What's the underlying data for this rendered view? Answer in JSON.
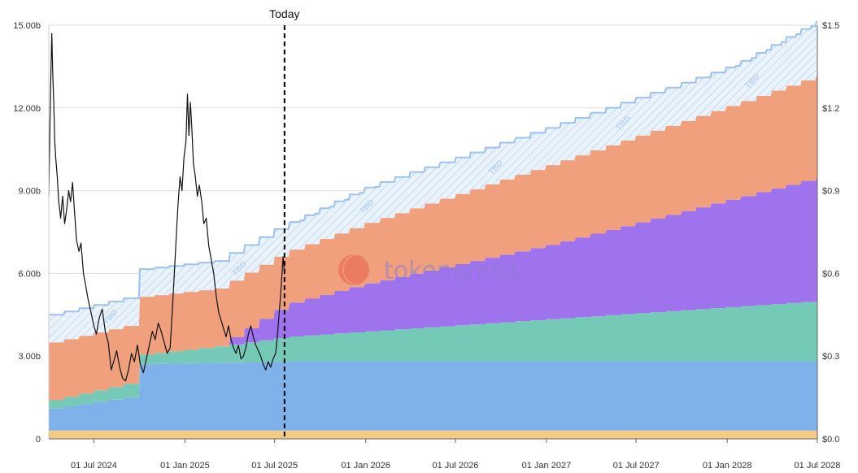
{
  "chart_data": {
    "type": "area",
    "stacked": true,
    "x_axis": {
      "ticks": [
        "01 Jul 2024",
        "01 Jan 2025",
        "01 Jul 2025",
        "01 Jan 2026",
        "01 Jul 2026",
        "01 Jan 2027",
        "01 Jul 2027",
        "01 Jan 2028",
        "01 Jul 2028"
      ],
      "range": [
        "2024-04-01",
        "2028-07-01"
      ]
    },
    "y_axis_left": {
      "ticks": [
        "0",
        "3.00b",
        "6.00b",
        "9.00b",
        "12.00b",
        "15.00b"
      ],
      "range": [
        0,
        15
      ]
    },
    "y_axis_right": {
      "ticks": [
        "$0.0",
        "$0.3",
        "$0.6",
        "$0.9",
        "$1.2",
        "$1.5"
      ],
      "range": [
        0,
        1.5
      ]
    },
    "grid": true,
    "today_marker": {
      "label": "Today",
      "date": "2025-07-21"
    },
    "watermark": "tokenomist",
    "tbd_label": "TBD",
    "series": [
      {
        "color": "#f2cb85",
        "points": [
          [
            "2024-04-01",
            0.3
          ],
          [
            "2028-07-01",
            0.3
          ]
        ]
      },
      {
        "color": "#7fb2ea",
        "points": [
          [
            "2024-04-01",
            0.8
          ],
          [
            "2024-09-01",
            1.2
          ],
          [
            "2024-09-02",
            2.4
          ],
          [
            "2025-03-01",
            2.45
          ],
          [
            "2025-07-21",
            2.5
          ],
          [
            "2028-07-01",
            2.5
          ]
        ]
      },
      {
        "color": "#74c9b7",
        "points": [
          [
            "2024-04-01",
            0.3
          ],
          [
            "2024-09-01",
            0.5
          ],
          [
            "2024-09-02",
            0.3
          ],
          [
            "2025-01-01",
            0.5
          ],
          [
            "2025-03-01",
            0.6
          ],
          [
            "2025-07-21",
            0.9
          ],
          [
            "2028-07-01",
            2.2
          ]
        ]
      },
      {
        "color": "#9f72ee",
        "points": [
          [
            "2025-03-01",
            0.0
          ],
          [
            "2025-07-21",
            1.2
          ],
          [
            "2026-01-01",
            1.75
          ],
          [
            "2027-01-01",
            2.7
          ],
          [
            "2028-01-01",
            3.9
          ],
          [
            "2028-07-01",
            4.5
          ]
        ]
      },
      {
        "color": "#f0a07d",
        "points": [
          [
            "2025-03-01",
            2.1
          ],
          [
            "2025-07-21",
            1.9
          ],
          [
            "2026-01-01",
            2.2
          ],
          [
            "2027-01-01",
            2.9
          ],
          [
            "2028-01-01",
            3.4
          ],
          [
            "2028-07-01",
            3.7
          ]
        ]
      },
      {
        "color": "#cfe3fa",
        "tbd": true,
        "points": [
          [
            "2025-07-21",
            1.0
          ],
          [
            "2026-01-01",
            1.3
          ],
          [
            "2027-01-01",
            1.35
          ],
          [
            "2028-01-01",
            1.4
          ],
          [
            "2028-07-01",
            2.0
          ]
        ]
      }
    ],
    "price": {
      "color": "#111111",
      "axis": "right",
      "points": [
        [
          "2024-04-01",
          0.88
        ],
        [
          "2024-04-03",
          1.1
        ],
        [
          "2024-04-05",
          1.3
        ],
        [
          "2024-04-07",
          1.47
        ],
        [
          "2024-04-09",
          1.32
        ],
        [
          "2024-04-11",
          1.22
        ],
        [
          "2024-04-13",
          1.08
        ],
        [
          "2024-04-15",
          1.02
        ],
        [
          "2024-04-18",
          0.95
        ],
        [
          "2024-04-21",
          0.86
        ],
        [
          "2024-04-25",
          0.8
        ],
        [
          "2024-04-29",
          0.88
        ],
        [
          "2024-05-03",
          0.78
        ],
        [
          "2024-05-07",
          0.83
        ],
        [
          "2024-05-11",
          0.9
        ],
        [
          "2024-05-15",
          0.86
        ],
        [
          "2024-05-19",
          0.93
        ],
        [
          "2024-05-23",
          0.82
        ],
        [
          "2024-05-27",
          0.72
        ],
        [
          "2024-06-01",
          0.68
        ],
        [
          "2024-06-05",
          0.71
        ],
        [
          "2024-06-10",
          0.6
        ],
        [
          "2024-06-15",
          0.55
        ],
        [
          "2024-06-20",
          0.5
        ],
        [
          "2024-06-25",
          0.46
        ],
        [
          "2024-07-01",
          0.41
        ],
        [
          "2024-07-06",
          0.38
        ],
        [
          "2024-07-12",
          0.44
        ],
        [
          "2024-07-18",
          0.47
        ],
        [
          "2024-07-24",
          0.39
        ],
        [
          "2024-07-30",
          0.35
        ],
        [
          "2024-08-05",
          0.25
        ],
        [
          "2024-08-10",
          0.28
        ],
        [
          "2024-08-16",
          0.32
        ],
        [
          "2024-08-22",
          0.26
        ],
        [
          "2024-08-28",
          0.22
        ],
        [
          "2024-09-03",
          0.21
        ],
        [
          "2024-09-09",
          0.25
        ],
        [
          "2024-09-15",
          0.31
        ],
        [
          "2024-09-21",
          0.28
        ],
        [
          "2024-09-27",
          0.34
        ],
        [
          "2024-10-03",
          0.27
        ],
        [
          "2024-10-09",
          0.24
        ],
        [
          "2024-10-15",
          0.29
        ],
        [
          "2024-10-21",
          0.34
        ],
        [
          "2024-10-27",
          0.39
        ],
        [
          "2024-11-02",
          0.36
        ],
        [
          "2024-11-08",
          0.42
        ],
        [
          "2024-11-14",
          0.39
        ],
        [
          "2024-11-20",
          0.35
        ],
        [
          "2024-11-26",
          0.31
        ],
        [
          "2024-12-02",
          0.33
        ],
        [
          "2024-12-06",
          0.45
        ],
        [
          "2024-12-10",
          0.58
        ],
        [
          "2024-12-14",
          0.72
        ],
        [
          "2024-12-18",
          0.85
        ],
        [
          "2024-12-22",
          0.95
        ],
        [
          "2024-12-26",
          0.9
        ],
        [
          "2024-12-30",
          1.02
        ],
        [
          "2025-01-03",
          1.08
        ],
        [
          "2025-01-06",
          1.25
        ],
        [
          "2025-01-09",
          1.1
        ],
        [
          "2025-01-12",
          1.22
        ],
        [
          "2025-01-15",
          1.12
        ],
        [
          "2025-01-18",
          1.0
        ],
        [
          "2025-01-22",
          0.95
        ],
        [
          "2025-01-26",
          0.88
        ],
        [
          "2025-01-30",
          0.92
        ],
        [
          "2025-02-04",
          0.86
        ],
        [
          "2025-02-08",
          0.78
        ],
        [
          "2025-02-13",
          0.8
        ],
        [
          "2025-02-18",
          0.7
        ],
        [
          "2025-02-23",
          0.65
        ],
        [
          "2025-02-28",
          0.6
        ],
        [
          "2025-03-05",
          0.52
        ],
        [
          "2025-03-10",
          0.46
        ],
        [
          "2025-03-15",
          0.43
        ],
        [
          "2025-03-20",
          0.4
        ],
        [
          "2025-03-25",
          0.37
        ],
        [
          "2025-03-30",
          0.41
        ],
        [
          "2025-04-04",
          0.36
        ],
        [
          "2025-04-09",
          0.33
        ],
        [
          "2025-04-14",
          0.31
        ],
        [
          "2025-04-19",
          0.34
        ],
        [
          "2025-04-24",
          0.29
        ],
        [
          "2025-04-29",
          0.3
        ],
        [
          "2025-05-04",
          0.33
        ],
        [
          "2025-05-09",
          0.38
        ],
        [
          "2025-05-14",
          0.41
        ],
        [
          "2025-05-19",
          0.37
        ],
        [
          "2025-05-24",
          0.34
        ],
        [
          "2025-05-29",
          0.32
        ],
        [
          "2025-06-03",
          0.3
        ],
        [
          "2025-06-08",
          0.27
        ],
        [
          "2025-06-13",
          0.25
        ],
        [
          "2025-06-18",
          0.28
        ],
        [
          "2025-06-23",
          0.26
        ],
        [
          "2025-06-28",
          0.29
        ],
        [
          "2025-07-03",
          0.31
        ],
        [
          "2025-07-07",
          0.38
        ],
        [
          "2025-07-10",
          0.45
        ],
        [
          "2025-07-13",
          0.52
        ],
        [
          "2025-07-16",
          0.6
        ],
        [
          "2025-07-18",
          0.66
        ],
        [
          "2025-07-20",
          0.62
        ],
        [
          "2025-07-21",
          0.6
        ]
      ]
    }
  }
}
